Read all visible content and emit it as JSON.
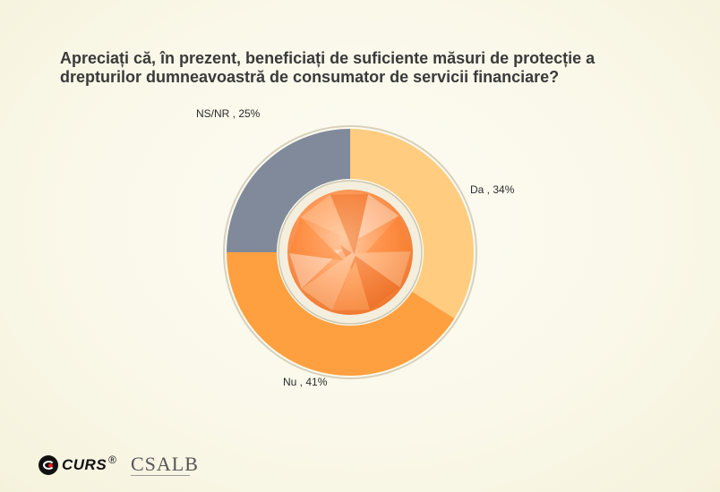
{
  "chart_data": {
    "type": "pie",
    "variant": "donut",
    "title": "Apreciați că, în prezent, beneficiați de suficiente măsuri de protecție a\ndrepturilor dumneavoastră de consumator de servicii financiare?",
    "slices": [
      {
        "label": "Da",
        "value": 34,
        "display": "Da , 34%",
        "color": "#FFCC80"
      },
      {
        "label": "Nu",
        "value": 41,
        "display": "Nu , 41%",
        "color": "#FFA040"
      },
      {
        "label": "NS/NR",
        "value": 25,
        "display": "NS/NR , 25%",
        "color": "#808A9B"
      }
    ]
  },
  "footer": {
    "curs_logo": "CURS",
    "registered": "®",
    "cs_logo": "CSALB"
  }
}
